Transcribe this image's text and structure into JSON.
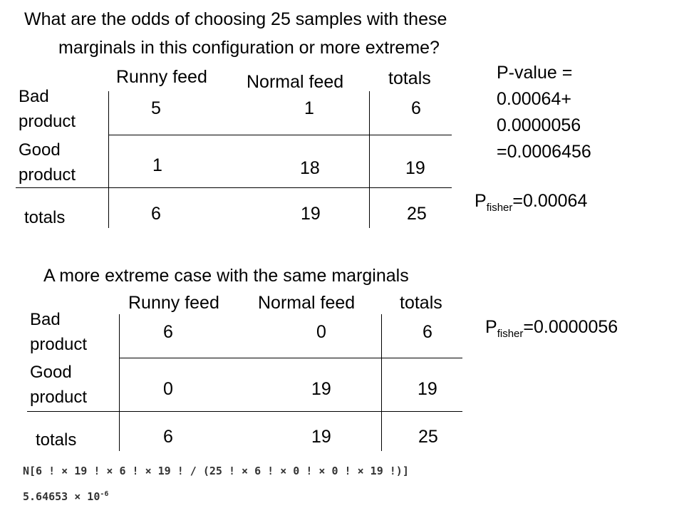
{
  "question": {
    "line1": "What are the odds of choosing 25 samples with these",
    "line2": "marginals in this configuration or more extreme?"
  },
  "table1": {
    "col_headers": [
      "Runny feed",
      "Normal feed",
      "totals"
    ],
    "rows": [
      {
        "label_line1": "Bad",
        "label_line2": "product",
        "values": [
          "5",
          "1",
          "6"
        ]
      },
      {
        "label_line1": "Good",
        "label_line2": "product",
        "values": [
          "1",
          "18",
          "19"
        ]
      },
      {
        "label_line1": "totals",
        "label_line2": "",
        "values": [
          "6",
          "19",
          "25"
        ]
      }
    ]
  },
  "pvalue": {
    "line1": "P-value =",
    "line2": "0.00064+",
    "line3": "0.0000056",
    "line4": "=0.0006456"
  },
  "pfisher1": {
    "p": "P",
    "sub": "fisher",
    "value": "=0.00064"
  },
  "extreme_heading": "A more extreme case with the same marginals",
  "table2": {
    "col_headers": [
      "Runny feed",
      "Normal feed",
      "totals"
    ],
    "rows": [
      {
        "label_line1": "Bad",
        "label_line2": "product",
        "values": [
          "6",
          "0",
          "6"
        ]
      },
      {
        "label_line1": "Good",
        "label_line2": "product",
        "values": [
          "0",
          "19",
          "19"
        ]
      },
      {
        "label_line1": "totals",
        "label_line2": "",
        "values": [
          "6",
          "19",
          "25"
        ]
      }
    ]
  },
  "pfisher2": {
    "p": "P",
    "sub": "fisher",
    "value": "=0.0000056"
  },
  "math": {
    "input": "N[6 ! × 19 ! × 6 ! × 19 ! / (25 ! × 6 ! × 0 ! × 0 ! × 19 !)]",
    "output_mantissa": "5.64653 × 10",
    "output_exp": "-6"
  }
}
